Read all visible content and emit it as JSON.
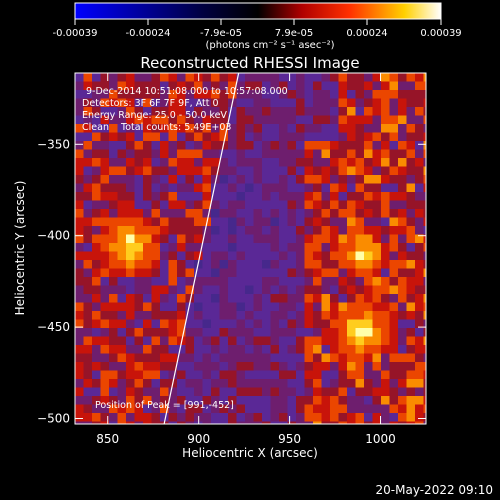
{
  "colorbar": {
    "tick_labels": [
      "-0.00039",
      "-0.00024",
      "-7.9e-05",
      "7.9e-05",
      "0.00024",
      "0.00039"
    ],
    "units_label": "(photons cm⁻² s⁻¹ asec⁻²)",
    "range": [
      -0.00039,
      0.00039
    ],
    "colors": [
      "#0000ff",
      "#000000",
      "#ff0000",
      "#ffff00",
      "#ffffff"
    ]
  },
  "chart_data": {
    "type": "heatmap",
    "title": "Reconstructed RHESSI Image",
    "xlabel": "Heliocentric X (arcsec)",
    "ylabel": "Heliocentric Y (arcsec)",
    "xlim": [
      832,
      1025
    ],
    "ylim": [
      -503,
      -311
    ],
    "x_ticks": [
      850,
      900,
      950,
      1000
    ],
    "y_ticks": [
      -350,
      -400,
      -450,
      -500
    ],
    "annotations": [
      "9-Dec-2014 10:51:08.000 to 10:57:08.000",
      "Detectors: 3F 6F 7F 9F, Att 0",
      "Energy Range: 25.0 - 50.0 keV",
      "Clean    Total counts: 5.49E+03",
      "Position of Peak = [991,-452]"
    ],
    "limb_line": [
      [
        881,
        -503
      ],
      [
        922,
        -311
      ]
    ],
    "peak_position": [
      991,
      -452
    ],
    "sources": [
      {
        "x": 862,
        "y": -405,
        "intensity": 0.00039
      },
      {
        "x": 990,
        "y": -452,
        "intensity": 0.00039
      },
      {
        "x": 990,
        "y": -410,
        "intensity": 0.0003
      }
    ]
  },
  "footer": {
    "timestamp": "20-May-2022 09:10"
  }
}
